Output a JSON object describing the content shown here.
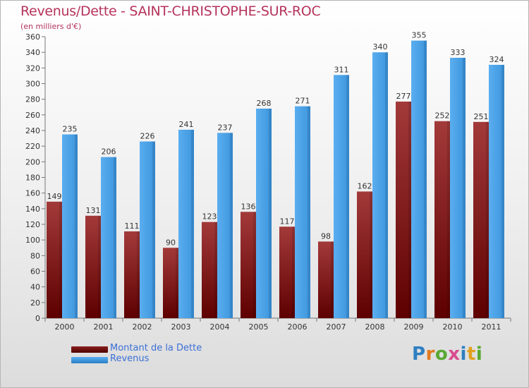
{
  "title": "Revenus/Dette - SAINT-CHRISTOPHE-SUR-ROC",
  "subtitle": "(en milliers d'€)",
  "logo": {
    "text": "Proxiti",
    "colors": [
      "#2e7fc1",
      "#e07a1e",
      "#58a832",
      "#d94b8f",
      "#2e7fc1",
      "#e0a11e",
      "#58a832"
    ]
  },
  "chart_data": {
    "type": "bar",
    "title": "Revenus/Dette - SAINT-CHRISTOPHE-SUR-ROC",
    "ylabel": "(en milliers d'€)",
    "xlabel": "",
    "ylim": [
      0,
      360
    ],
    "ytick_step": 20,
    "grid": false,
    "legend_position": "bottom-left",
    "categories": [
      "2000",
      "2001",
      "2002",
      "2003",
      "2004",
      "2005",
      "2006",
      "2007",
      "2008",
      "2009",
      "2010",
      "2011"
    ],
    "series": [
      {
        "name": "Montant de la Dette",
        "color_dark": "#5e0000",
        "color_light": "#a33a3a",
        "values": [
          149,
          131,
          111,
          90,
          123,
          136,
          117,
          98,
          162,
          277,
          252,
          251
        ]
      },
      {
        "name": "Revenus",
        "color_dark": "#2a7fc6",
        "color_light": "#5aaef0",
        "values": [
          235,
          206,
          226,
          241,
          237,
          268,
          271,
          311,
          340,
          355,
          333,
          324
        ]
      }
    ]
  }
}
